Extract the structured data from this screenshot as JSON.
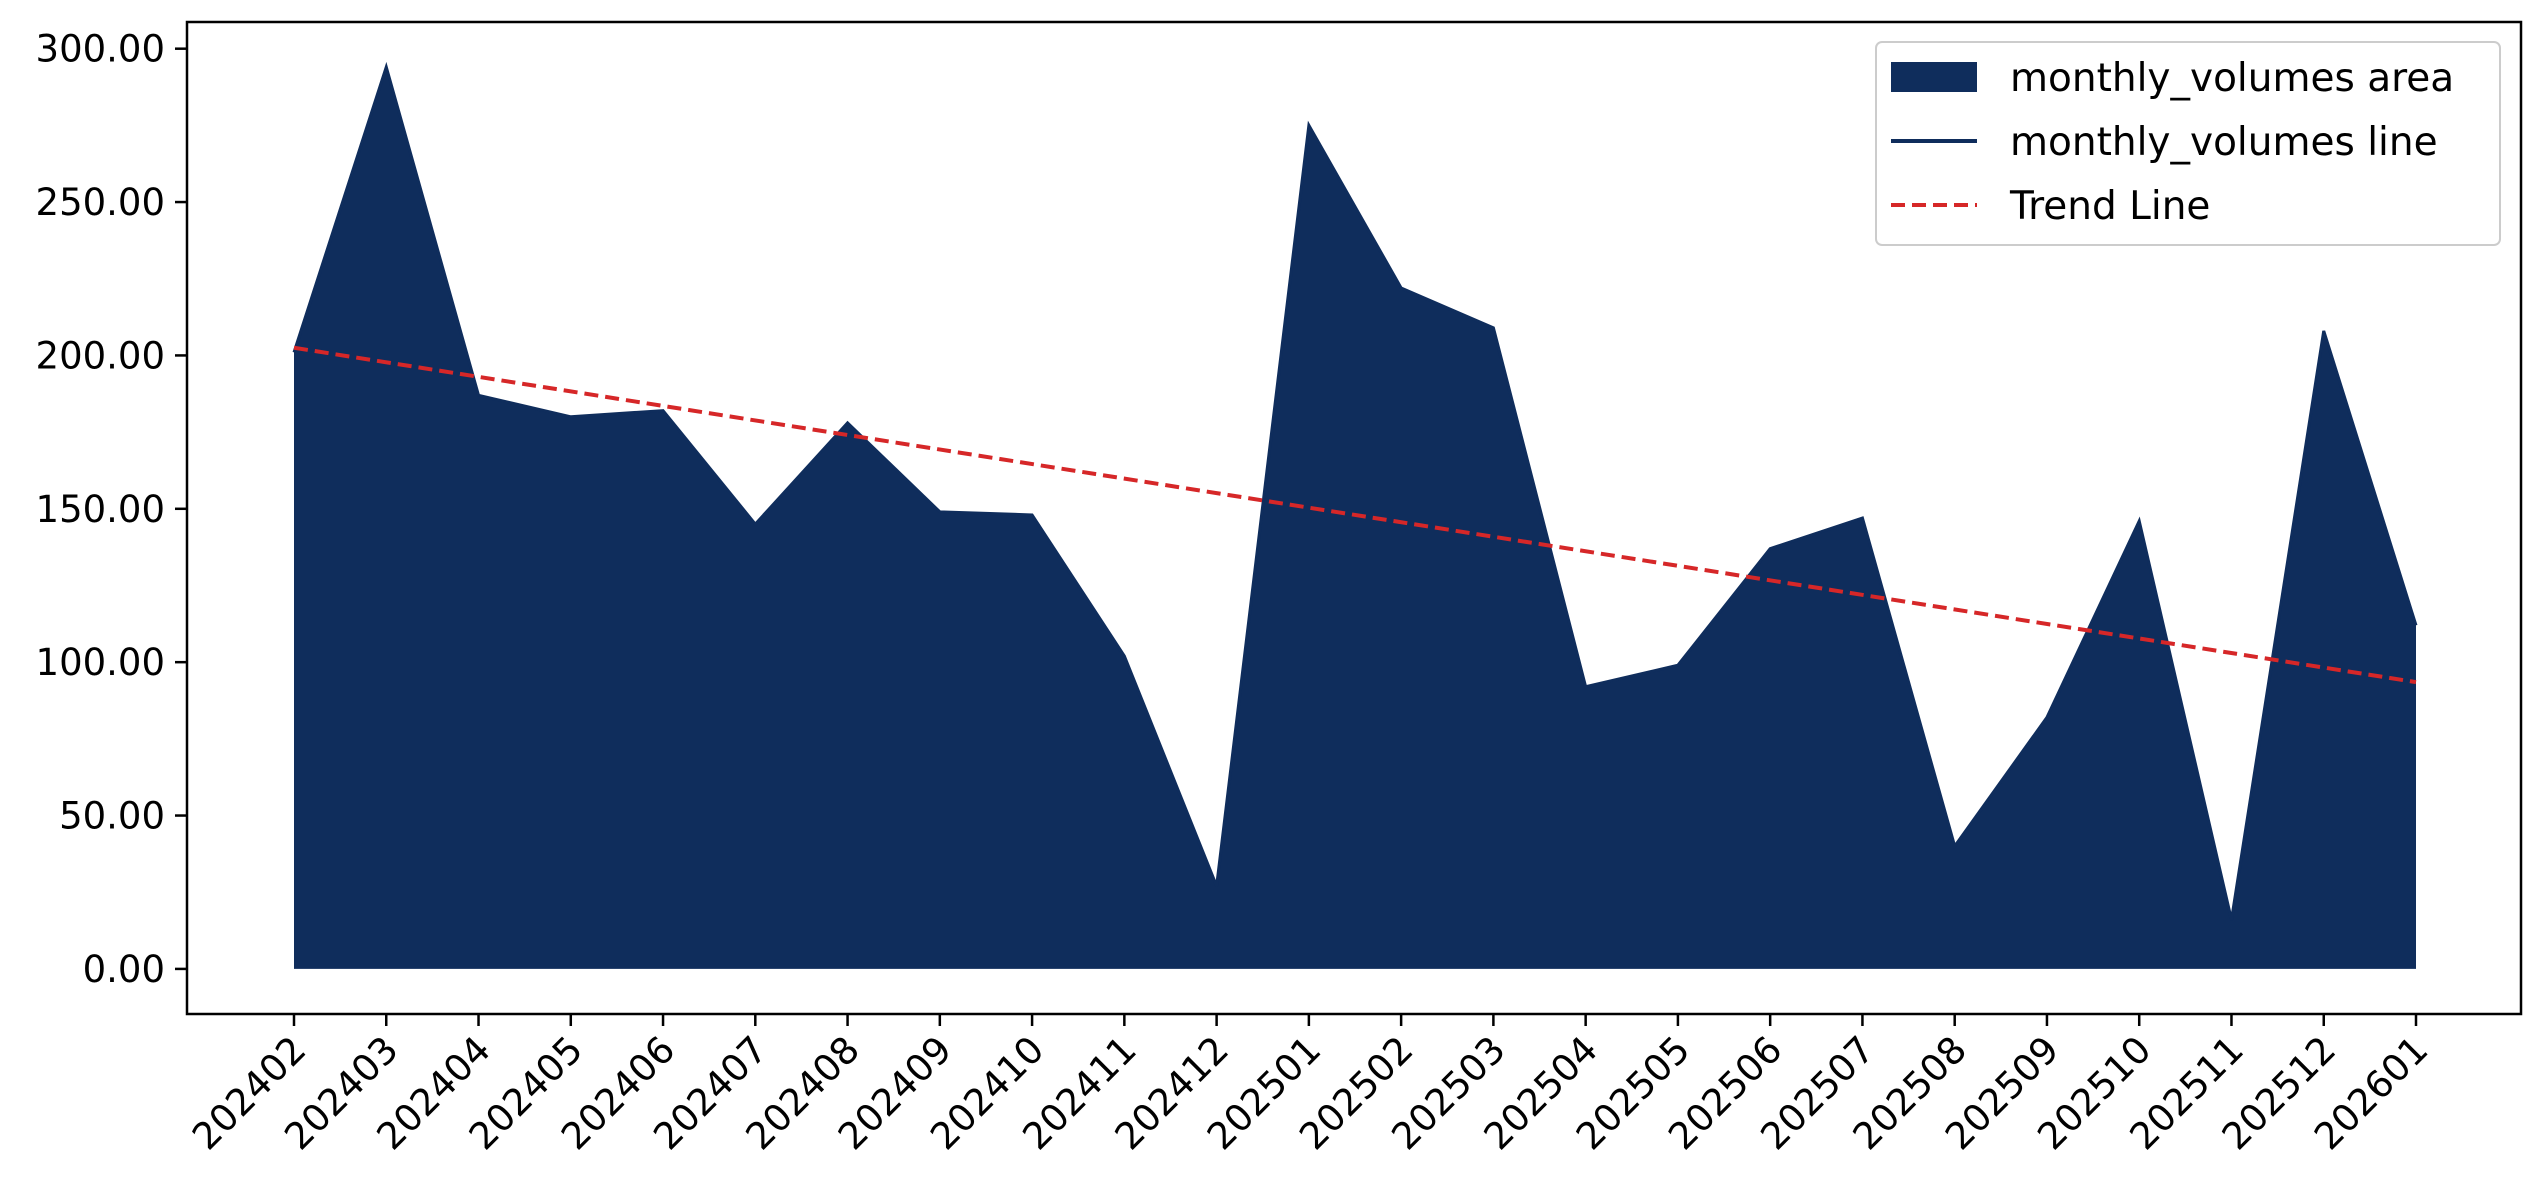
{
  "chart_data": {
    "type": "area",
    "categories": [
      "202402",
      "202403",
      "202404",
      "202405",
      "202406",
      "202407",
      "202408",
      "202409",
      "202410",
      "202411",
      "202412",
      "202501",
      "202502",
      "202503",
      "202504",
      "202505",
      "202506",
      "202507",
      "202508",
      "202509",
      "202510",
      "202511",
      "202512",
      "202601"
    ],
    "series": [
      {
        "name": "monthly_volumes area",
        "style": "area",
        "color": "#0f2d5c",
        "values": [
          201,
          294,
          187,
          180,
          182,
          145,
          178,
          149,
          148,
          102,
          27,
          275,
          222,
          209,
          92,
          99,
          137,
          147,
          40,
          82,
          146,
          16,
          208,
          112
        ]
      },
      {
        "name": "monthly_volumes line",
        "style": "line",
        "color": "#0f2d5c",
        "values": [
          201,
          294,
          187,
          180,
          182,
          145,
          178,
          149,
          148,
          102,
          27,
          275,
          222,
          209,
          92,
          99,
          137,
          147,
          40,
          82,
          146,
          16,
          208,
          112
        ]
      },
      {
        "name": "Trend Line",
        "style": "dashed",
        "color": "#d62728",
        "start": 202.5,
        "end": 93.5
      }
    ],
    "yticks": [
      "0.00",
      "50.00",
      "100.00",
      "150.00",
      "200.00",
      "250.00",
      "300.00"
    ],
    "ytick_values": [
      0,
      50,
      100,
      150,
      200,
      250,
      300
    ],
    "ylim": [
      -14.7,
      308.7
    ],
    "grid": false,
    "legend_position": "top-right"
  }
}
